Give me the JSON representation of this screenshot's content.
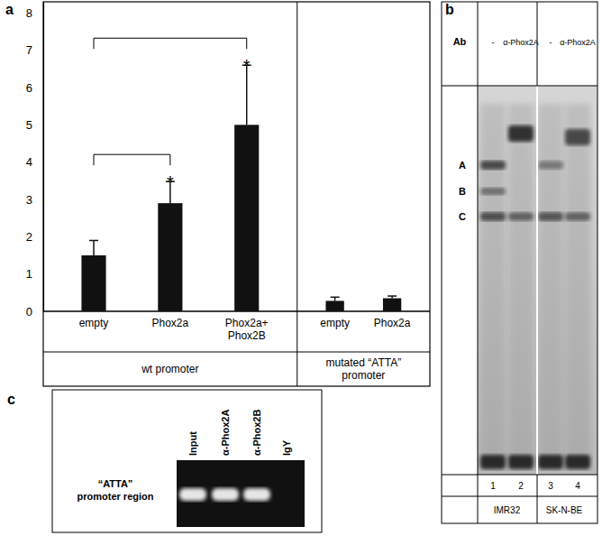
{
  "chart_data": {
    "type": "bar",
    "panel_label": "a",
    "categories": [
      "empty",
      "Phox2a",
      "Phox2a+\nPhox2B",
      "empty",
      "Phox2a"
    ],
    "values": [
      1.5,
      2.9,
      5.0,
      0.28,
      0.35
    ],
    "errors": [
      0.4,
      0.58,
      1.6,
      0.1,
      0.06
    ],
    "color": "#111111",
    "ylim": [
      0,
      8.3
    ],
    "yticks": [
      0,
      1,
      2,
      3,
      4,
      5,
      6,
      7,
      8
    ],
    "groups": [
      {
        "label": "wt promoter",
        "categories": [
          0,
          1,
          2
        ]
      },
      {
        "label": "mutated “ATTA”\npromoter",
        "categories": [
          3,
          4
        ]
      }
    ],
    "significance": [
      {
        "from": 0,
        "to": 2,
        "label": "*"
      },
      {
        "from": 0,
        "to": 1,
        "label": "*"
      }
    ]
  },
  "emsa": {
    "panel_label": "b",
    "row_header": "Ab",
    "antibodies": [
      "-",
      "α-Phox2A",
      "-",
      "α-Phox2A"
    ],
    "lane_numbers": [
      "1",
      "2",
      "3",
      "4"
    ],
    "cell_lines": [
      {
        "label": "IMR32",
        "lanes": [
          0,
          1
        ]
      },
      {
        "label": "SK-N-BE",
        "lanes": [
          2,
          3
        ]
      }
    ],
    "band_labels": [
      "A",
      "B",
      "C"
    ]
  },
  "chip": {
    "panel_label": "c",
    "columns": [
      "Input",
      "α-Phox2A",
      "α-Phox2B",
      "IgY"
    ],
    "band": [
      true,
      true,
      true,
      false
    ],
    "row_label": "“ATTA”\npromoter region"
  }
}
